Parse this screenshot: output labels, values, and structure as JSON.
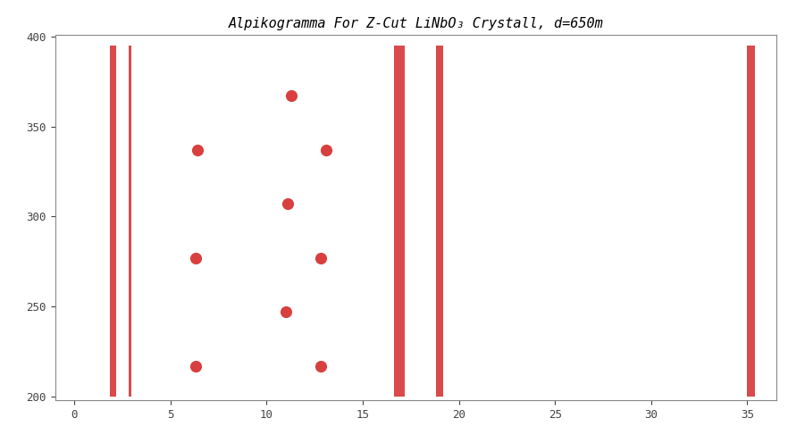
{
  "chart_data": {
    "type": "scatter",
    "title": "Alpikogramma For Z-Cut LiNbO₃ Crystall, d=650m",
    "x": [
      6.3,
      6.3,
      6.4,
      11.0,
      11.1,
      11.3,
      12.8,
      12.8,
      13.1
    ],
    "values": [
      217,
      277,
      337,
      247,
      307,
      367,
      217,
      277,
      337
    ],
    "bands": [
      {
        "x": 2.0,
        "width": 0.3,
        "y_range": [
          200,
          395
        ]
      },
      {
        "x": 2.9,
        "width": 0.15,
        "y_range": [
          200,
          395
        ]
      },
      {
        "x": 16.9,
        "width": 0.6,
        "y_range": [
          200,
          395
        ]
      },
      {
        "x": 19.0,
        "width": 0.4,
        "y_range": [
          200,
          395
        ]
      },
      {
        "x": 35.2,
        "width": 0.4,
        "y_range": [
          200,
          395
        ]
      }
    ],
    "color": "#d42a2a",
    "marker": "o",
    "xlim": [
      -1,
      36.5
    ],
    "ylim": [
      198,
      401
    ],
    "xticks": [
      0,
      5,
      10,
      15,
      20,
      25,
      30,
      35
    ],
    "yticks": [
      200,
      250,
      300,
      350,
      400
    ],
    "grid": false
  }
}
